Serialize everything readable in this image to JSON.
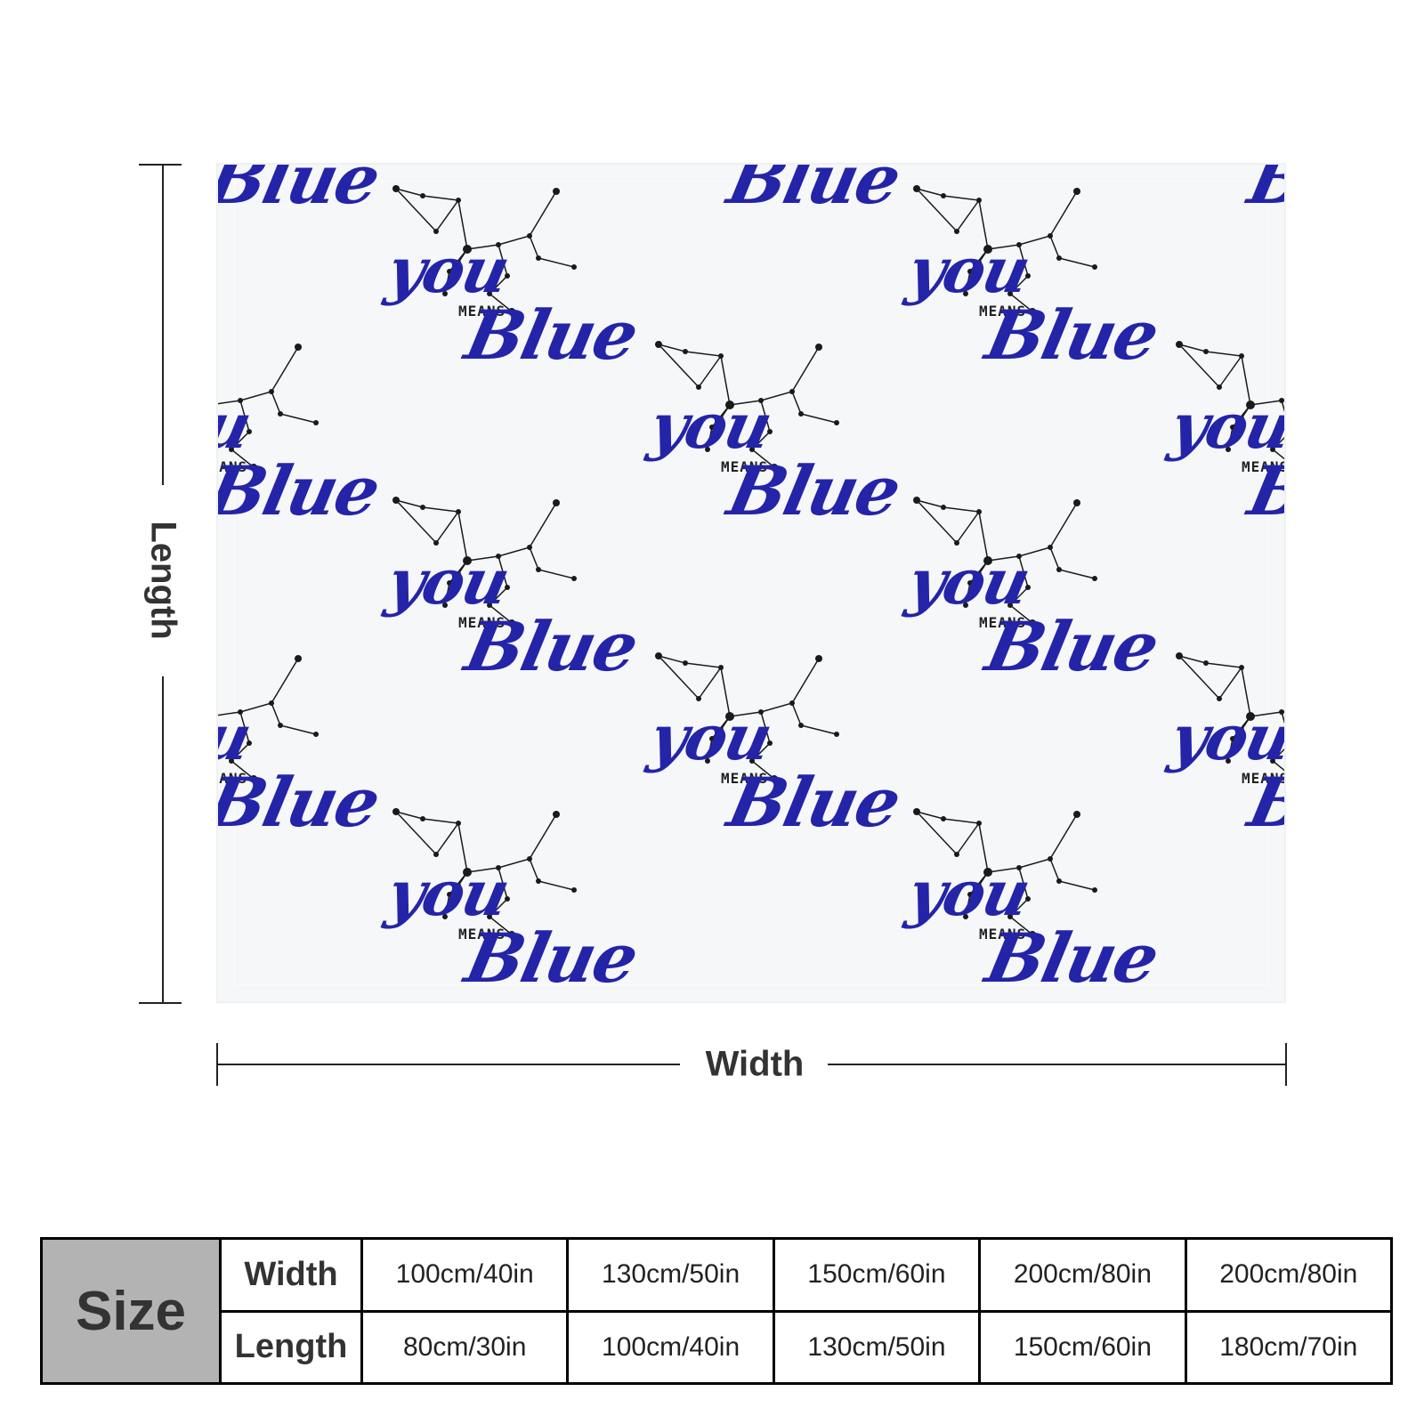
{
  "design": {
    "word_blue": "Blue",
    "word_means": "MEANS",
    "word_you": "you",
    "text_color": "#2424a8",
    "star_color": "#1a1a1a"
  },
  "dimensions": {
    "length_label": "Length",
    "width_label": "Width"
  },
  "size_table": {
    "header": "Size",
    "width_label": "Width",
    "length_label": "Length",
    "widths": [
      "100cm/40in",
      "130cm/50in",
      "150cm/60in",
      "200cm/80in",
      "200cm/80in"
    ],
    "lengths": [
      "80cm/30in",
      "100cm/40in",
      "130cm/50in",
      "150cm/60in",
      "180cm/70in"
    ]
  }
}
